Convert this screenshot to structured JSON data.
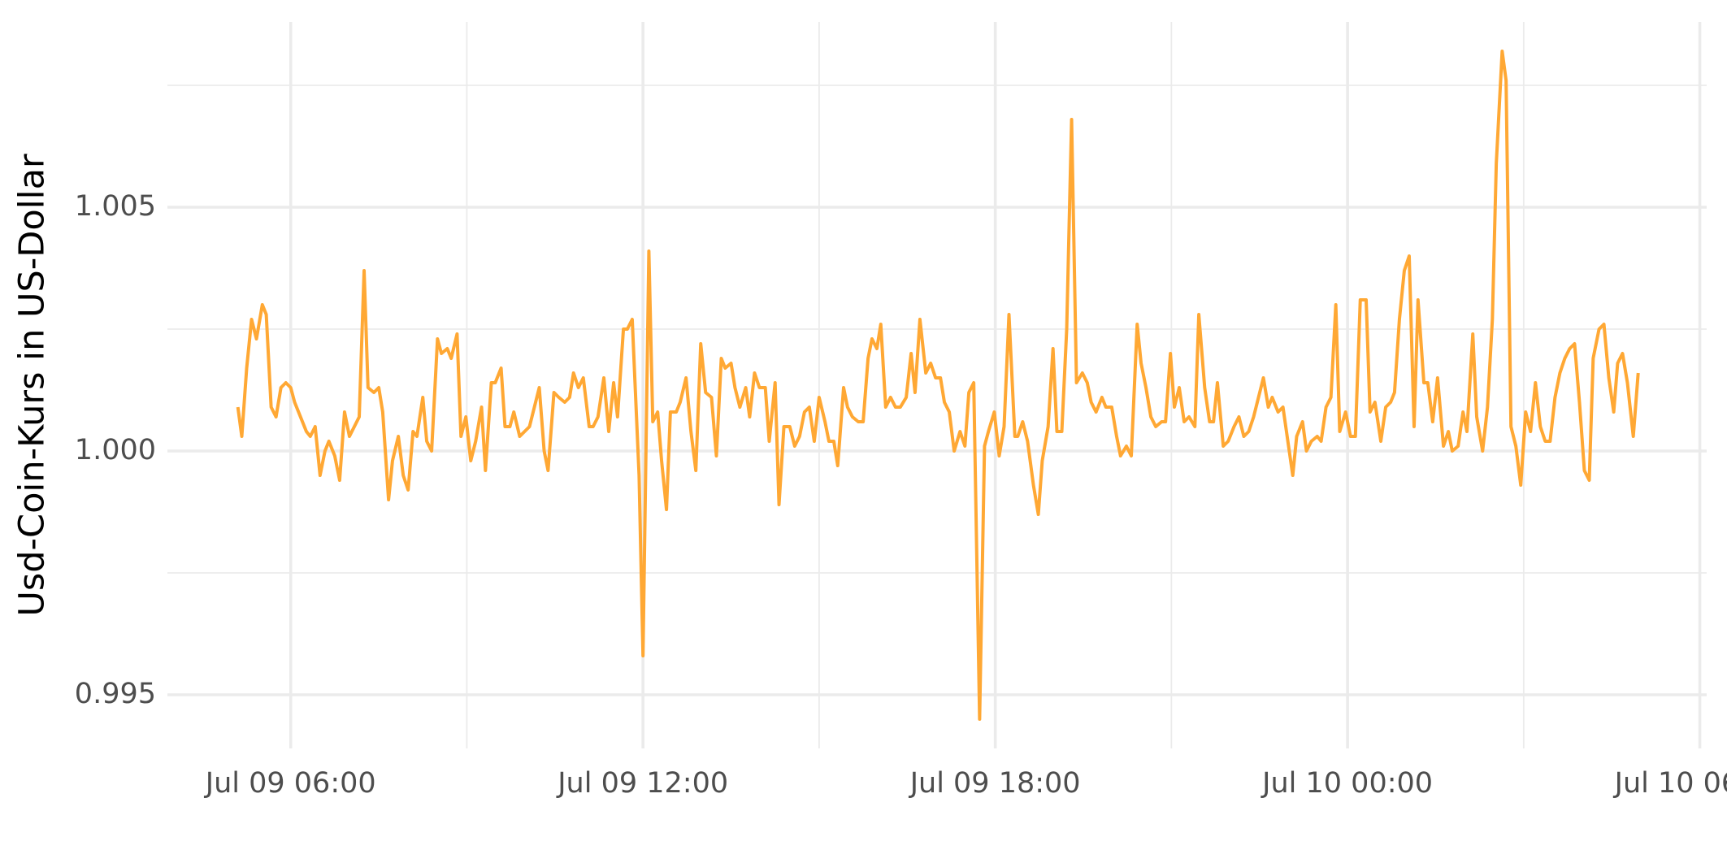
{
  "chart_data": {
    "type": "line",
    "y_label": "Usd-Coin-Kurs in US-Dollar",
    "x": [
      "Jul 09 05:06",
      "Jul 09 05:10",
      "Jul 09 05:15",
      "Jul 09 05:20",
      "Jul 09 05:25",
      "Jul 09 05:31",
      "Jul 09 05:35",
      "Jul 09 05:40",
      "Jul 09 05:45",
      "Jul 09 05:50",
      "Jul 09 05:55",
      "Jul 09 06:00",
      "Jul 09 06:04",
      "Jul 09 06:10",
      "Jul 09 06:16",
      "Jul 09 06:20",
      "Jul 09 06:25",
      "Jul 09 06:30",
      "Jul 09 06:35",
      "Jul 09 06:39",
      "Jul 09 06:45",
      "Jul 09 06:50",
      "Jul 09 06:55",
      "Jul 09 07:00",
      "Jul 09 07:05",
      "Jul 09 07:10",
      "Jul 09 07:15",
      "Jul 09 07:19",
      "Jul 09 07:25",
      "Jul 09 07:30",
      "Jul 09 07:34",
      "Jul 09 07:40",
      "Jul 09 07:44",
      "Jul 09 07:50",
      "Jul 09 07:55",
      "Jul 09 08:00",
      "Jul 09 08:05",
      "Jul 09 08:09",
      "Jul 09 08:15",
      "Jul 09 08:19",
      "Jul 09 08:24",
      "Jul 09 08:30",
      "Jul 09 08:34",
      "Jul 09 08:40",
      "Jul 09 08:44",
      "Jul 09 08:50",
      "Jul 09 08:54",
      "Jul 09 08:59",
      "Jul 09 09:04",
      "Jul 09 09:09",
      "Jul 09 09:15",
      "Jul 09 09:19",
      "Jul 09 09:25",
      "Jul 09 09:29",
      "Jul 09 09:35",
      "Jul 09 09:39",
      "Jul 09 09:44",
      "Jul 09 09:48",
      "Jul 09 09:54",
      "Jul 09 09:59",
      "Jul 09 10:04",
      "Jul 09 10:09",
      "Jul 09 10:14",
      "Jul 09 10:19",
      "Jul 09 10:23",
      "Jul 09 10:29",
      "Jul 09 10:34",
      "Jul 09 10:40",
      "Jul 09 10:45",
      "Jul 09 10:49",
      "Jul 09 10:54",
      "Jul 09 10:59",
      "Jul 09 11:05",
      "Jul 09 11:09",
      "Jul 09 11:14",
      "Jul 09 11:20",
      "Jul 09 11:25",
      "Jul 09 11:30",
      "Jul 09 11:34",
      "Jul 09 11:40",
      "Jul 09 11:44",
      "Jul 09 11:49",
      "Jul 09 11:56",
      "Jul 09 12:00",
      "Jul 09 12:06",
      "Jul 09 12:10",
      "Jul 09 12:15",
      "Jul 09 12:19",
      "Jul 09 12:24",
      "Jul 09 12:28",
      "Jul 09 12:34",
      "Jul 09 12:38",
      "Jul 09 12:44",
      "Jul 09 12:49",
      "Jul 09 12:54",
      "Jul 09 12:59",
      "Jul 09 13:04",
      "Jul 09 13:10",
      "Jul 09 13:15",
      "Jul 09 13:20",
      "Jul 09 13:24",
      "Jul 09 13:30",
      "Jul 09 13:34",
      "Jul 09 13:39",
      "Jul 09 13:45",
      "Jul 09 13:49",
      "Jul 09 13:54",
      "Jul 09 13:59",
      "Jul 09 14:05",
      "Jul 09 14:09",
      "Jul 09 14:15",
      "Jul 09 14:19",
      "Jul 09 14:24",
      "Jul 09 14:30",
      "Jul 09 14:35",
      "Jul 09 14:40",
      "Jul 09 14:45",
      "Jul 09 14:50",
      "Jul 09 14:55",
      "Jul 09 15:00",
      "Jul 09 15:06",
      "Jul 09 15:10",
      "Jul 09 15:15",
      "Jul 09 15:19",
      "Jul 09 15:25",
      "Jul 09 15:29",
      "Jul 09 15:34",
      "Jul 09 15:40",
      "Jul 09 15:45",
      "Jul 09 15:50",
      "Jul 09 15:54",
      "Jul 09 15:59",
      "Jul 09 16:03",
      "Jul 09 16:08",
      "Jul 09 16:13",
      "Jul 09 16:18",
      "Jul 09 16:23",
      "Jul 09 16:29",
      "Jul 09 16:34",
      "Jul 09 16:38",
      "Jul 09 16:43",
      "Jul 09 16:49",
      "Jul 09 16:54",
      "Jul 09 16:59",
      "Jul 09 17:04",
      "Jul 09 17:08",
      "Jul 09 17:13",
      "Jul 09 17:18",
      "Jul 09 17:24",
      "Jul 09 17:29",
      "Jul 09 17:33",
      "Jul 09 17:38",
      "Jul 09 17:44",
      "Jul 09 17:49",
      "Jul 09 17:53",
      "Jul 09 17:59",
      "Jul 09 18:04",
      "Jul 09 18:09",
      "Jul 09 18:14",
      "Jul 09 18:20",
      "Jul 09 18:23",
      "Jul 09 18:28",
      "Jul 09 18:33",
      "Jul 09 18:39",
      "Jul 09 18:44",
      "Jul 09 18:48",
      "Jul 09 18:54",
      "Jul 09 18:59",
      "Jul 09 19:03",
      "Jul 09 19:08",
      "Jul 09 19:13",
      "Jul 09 19:18",
      "Jul 09 19:23",
      "Jul 09 19:29",
      "Jul 09 19:34",
      "Jul 09 19:38",
      "Jul 09 19:43",
      "Jul 09 19:49",
      "Jul 09 19:53",
      "Jul 09 19:59",
      "Jul 09 20:04",
      "Jul 09 20:08",
      "Jul 09 20:14",
      "Jul 09 20:19",
      "Jul 09 20:25",
      "Jul 09 20:29",
      "Jul 09 20:34",
      "Jul 09 20:39",
      "Jul 09 20:44",
      "Jul 09 20:50",
      "Jul 09 20:54",
      "Jul 09 20:59",
      "Jul 09 21:03",
      "Jul 09 21:08",
      "Jul 09 21:13",
      "Jul 09 21:18",
      "Jul 09 21:24",
      "Jul 09 21:28",
      "Jul 09 21:34",
      "Jul 09 21:39",
      "Jul 09 21:43",
      "Jul 09 21:47",
      "Jul 09 21:53",
      "Jul 09 21:58",
      "Jul 09 22:04",
      "Jul 09 22:09",
      "Jul 09 22:14",
      "Jul 09 22:19",
      "Jul 09 22:24",
      "Jul 09 22:29",
      "Jul 09 22:34",
      "Jul 09 22:39",
      "Jul 09 22:43",
      "Jul 09 22:49",
      "Jul 09 22:54",
      "Jul 09 22:59",
      "Jul 09 23:04",
      "Jul 09 23:08",
      "Jul 09 23:14",
      "Jul 09 23:18",
      "Jul 09 23:23",
      "Jul 09 23:29",
      "Jul 09 23:33",
      "Jul 09 23:38",
      "Jul 09 23:43",
      "Jul 09 23:48",
      "Jul 09 23:52",
      "Jul 09 23:58",
      "Jul 10 00:03",
      "Jul 10 00:08",
      "Jul 10 00:13",
      "Jul 10 00:19",
      "Jul 10 00:23",
      "Jul 10 00:28",
      "Jul 10 00:34",
      "Jul 10 00:39",
      "Jul 10 00:44",
      "Jul 10 00:48",
      "Jul 10 00:53",
      "Jul 10 00:58",
      "Jul 10 01:03",
      "Jul 10 01:08",
      "Jul 10 01:12",
      "Jul 10 01:18",
      "Jul 10 01:22",
      "Jul 10 01:27",
      "Jul 10 01:32",
      "Jul 10 01:38",
      "Jul 10 01:43",
      "Jul 10 01:47",
      "Jul 10 01:53",
      "Jul 10 01:58",
      "Jul 10 02:02",
      "Jul 10 02:08",
      "Jul 10 02:12",
      "Jul 10 02:18",
      "Jul 10 02:23",
      "Jul 10 02:28",
      "Jul 10 02:32",
      "Jul 10 02:38",
      "Jul 10 02:42",
      "Jul 10 02:47",
      "Jul 10 02:52",
      "Jul 10 02:57",
      "Jul 10 03:02",
      "Jul 10 03:07",
      "Jul 10 03:12",
      "Jul 10 03:17",
      "Jul 10 03:22",
      "Jul 10 03:27",
      "Jul 10 03:32",
      "Jul 10 03:37",
      "Jul 10 03:42",
      "Jul 10 03:47",
      "Jul 10 03:52",
      "Jul 10 03:57",
      "Jul 10 04:02",
      "Jul 10 04:07",
      "Jul 10 04:11",
      "Jul 10 04:17",
      "Jul 10 04:22",
      "Jul 10 04:27",
      "Jul 10 04:32",
      "Jul 10 04:36",
      "Jul 10 04:41",
      "Jul 10 04:46",
      "Jul 10 04:52",
      "Jul 10 04:57"
    ],
    "series": [
      {
        "color": "#ffa834",
        "values": [
          1.0009,
          1.0003,
          1.0017,
          1.0027,
          1.0023,
          1.003,
          1.0028,
          1.0009,
          1.0007,
          1.0013,
          1.0014,
          1.0013,
          1.001,
          1.0007,
          1.0004,
          1.0003,
          1.0005,
          0.9995,
          1.0,
          1.0002,
          0.9999,
          0.9994,
          1.0008,
          1.0003,
          1.0005,
          1.0007,
          1.0037,
          1.0013,
          1.0012,
          1.0013,
          1.0008,
          0.999,
          0.9998,
          1.0003,
          0.9995,
          0.9992,
          1.0004,
          1.0003,
          1.0011,
          1.0002,
          1.0,
          1.0023,
          1.002,
          1.0021,
          1.0019,
          1.0024,
          1.0003,
          1.0007,
          0.9998,
          1.0002,
          1.0009,
          0.9996,
          1.0014,
          1.0014,
          1.0017,
          1.0005,
          1.0005,
          1.0008,
          1.0003,
          1.0004,
          1.0005,
          1.0009,
          1.0013,
          1.0,
          0.9996,
          1.0012,
          1.0011,
          1.001,
          1.0011,
          1.0016,
          1.0013,
          1.0015,
          1.0005,
          1.0005,
          1.0007,
          1.0015,
          1.0004,
          1.0014,
          1.0007,
          1.0025,
          1.0025,
          1.0027,
          0.9995,
          0.9958,
          1.0041,
          1.0006,
          1.0008,
          0.9998,
          0.9988,
          1.0008,
          1.0008,
          1.001,
          1.0015,
          1.0004,
          0.9996,
          1.0022,
          1.0012,
          1.0011,
          0.9999,
          1.0019,
          1.0017,
          1.0018,
          1.0013,
          1.0009,
          1.0013,
          1.0007,
          1.0016,
          1.0013,
          1.0013,
          1.0002,
          1.0014,
          0.9989,
          1.0005,
          1.0005,
          1.0001,
          1.0003,
          1.0008,
          1.0009,
          1.0002,
          1.0011,
          1.0006,
          1.0002,
          1.0002,
          0.9997,
          1.0013,
          1.0009,
          1.0007,
          1.0006,
          1.0006,
          1.0019,
          1.0023,
          1.0021,
          1.0026,
          1.0009,
          1.0011,
          1.0009,
          1.0009,
          1.0011,
          1.002,
          1.0012,
          1.0027,
          1.0016,
          1.0018,
          1.0015,
          1.0015,
          1.001,
          1.0008,
          1.0,
          1.0004,
          1.0001,
          1.0012,
          1.0014,
          0.9945,
          1.0001,
          1.0004,
          1.0008,
          0.9999,
          1.0005,
          1.0028,
          1.0003,
          1.0003,
          1.0006,
          1.0002,
          0.9993,
          0.9987,
          0.9998,
          1.0005,
          1.0021,
          1.0004,
          1.0004,
          1.0025,
          1.0068,
          1.0014,
          1.0016,
          1.0014,
          1.001,
          1.0008,
          1.0011,
          1.0009,
          1.0009,
          1.0003,
          0.9999,
          1.0001,
          0.9999,
          1.0026,
          1.0018,
          1.0013,
          1.0007,
          1.0005,
          1.0006,
          1.0006,
          1.002,
          1.0009,
          1.0013,
          1.0006,
          1.0007,
          1.0005,
          1.0028,
          1.0013,
          1.0006,
          1.0006,
          1.0014,
          1.0001,
          1.0002,
          1.0005,
          1.0007,
          1.0003,
          1.0004,
          1.0007,
          1.0011,
          1.0015,
          1.0009,
          1.0011,
          1.0008,
          1.0009,
          1.0002,
          0.9995,
          1.0003,
          1.0006,
          1.0,
          1.0002,
          1.0003,
          1.0002,
          1.0009,
          1.0011,
          1.003,
          1.0004,
          1.0008,
          1.0003,
          1.0003,
          1.0031,
          1.0031,
          1.0008,
          1.001,
          1.0002,
          1.0009,
          1.001,
          1.0012,
          1.0027,
          1.0037,
          1.004,
          1.0005,
          1.0031,
          1.0014,
          1.0014,
          1.0006,
          1.0015,
          1.0001,
          1.0004,
          1.0,
          1.0001,
          1.0008,
          1.0004,
          1.0024,
          1.0007,
          1.0,
          1.0009,
          1.0027,
          1.0059,
          1.0082,
          1.0076,
          1.0005,
          1.0001,
          0.9993,
          1.0008,
          1.0004,
          1.0014,
          1.0005,
          1.0002,
          1.0002,
          1.0011,
          1.0016,
          1.0019,
          1.0021,
          1.0022,
          1.001,
          0.9996,
          0.9994,
          1.0019,
          1.0025,
          1.0026,
          1.0015,
          1.0008,
          1.0018,
          1.002,
          1.0014,
          1.0003,
          1.0016
        ]
      }
    ],
    "xlim": [
      "Jul 09 03:54",
      "Jul 10 06:07"
    ],
    "xticks": [
      "Jul 09 06:00",
      "Jul 09 12:00",
      "Jul 09 18:00",
      "Jul 10 00:00",
      "Jul 10 06:00"
    ],
    "minor_xticks": [
      "Jul 09 09:00",
      "Jul 09 15:00",
      "Jul 09 21:00",
      "Jul 10 03:00"
    ],
    "ylim": [
      0.9939,
      1.0088
    ],
    "yticks": [
      {
        "value": 0.995,
        "label": "0.995"
      },
      {
        "value": 1.0,
        "label": "1.000"
      },
      {
        "value": 1.005,
        "label": "1.005"
      }
    ],
    "minor_yticks": [
      0.9975,
      1.0025,
      1.0075
    ],
    "grid": true
  }
}
